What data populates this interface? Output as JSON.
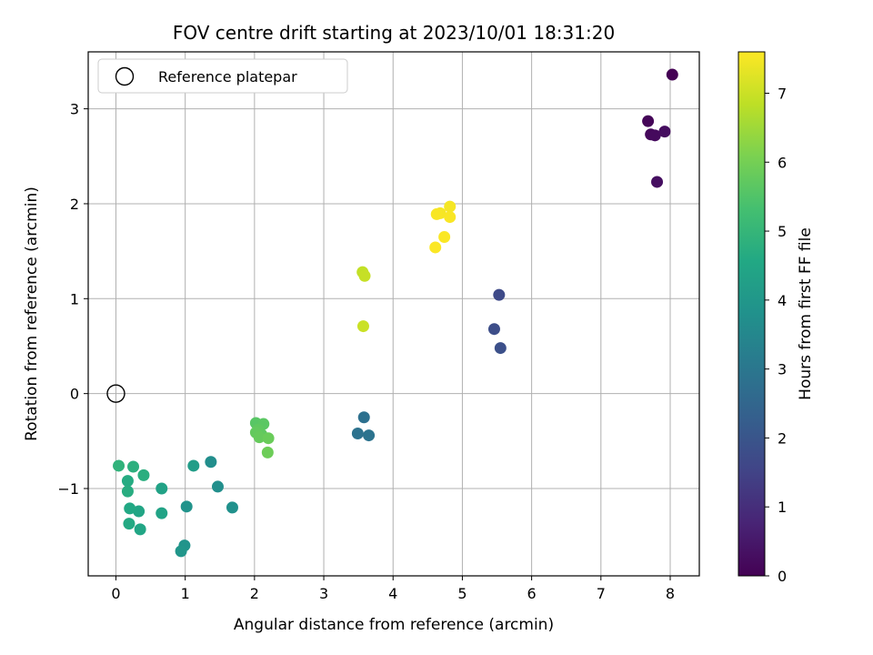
{
  "chart_data": {
    "type": "scatter",
    "title": "FOV centre drift starting at 2023/10/01 18:31:20",
    "xlabel": "Angular distance from reference (arcmin)",
    "ylabel": "Rotation from reference (arcmin)",
    "xlim": [
      -0.4,
      8.42
    ],
    "ylim": [
      -1.92,
      3.6
    ],
    "xticks": [
      0,
      1,
      2,
      3,
      4,
      5,
      6,
      7,
      8
    ],
    "yticks": [
      -1,
      0,
      1,
      2,
      3
    ],
    "ytick_labels": [
      "−1",
      "0",
      "1",
      "2",
      "3"
    ],
    "grid": true,
    "legend": {
      "location": "upper-left",
      "entries": [
        {
          "label": "Reference platepar",
          "marker": "open-circle",
          "x": 0,
          "y": 0
        }
      ]
    },
    "colorbar": {
      "label": "Hours from first FF file",
      "colormap": "viridis",
      "range": [
        0,
        7.6
      ],
      "ticks": [
        0,
        1,
        2,
        3,
        4,
        5,
        6,
        7
      ]
    },
    "points": [
      {
        "x": 8.03,
        "y": 3.36,
        "c": 0.0
      },
      {
        "x": 7.68,
        "y": 2.87,
        "c": 0.1
      },
      {
        "x": 7.72,
        "y": 2.73,
        "c": 0.15
      },
      {
        "x": 7.78,
        "y": 2.72,
        "c": 0.2
      },
      {
        "x": 7.92,
        "y": 2.76,
        "c": 0.25
      },
      {
        "x": 7.81,
        "y": 2.23,
        "c": 0.3
      },
      {
        "x": 5.53,
        "y": 1.04,
        "c": 1.7
      },
      {
        "x": 5.46,
        "y": 0.68,
        "c": 1.8
      },
      {
        "x": 5.55,
        "y": 0.48,
        "c": 1.85
      },
      {
        "x": 3.58,
        "y": -0.25,
        "c": 2.8
      },
      {
        "x": 3.49,
        "y": -0.42,
        "c": 2.85
      },
      {
        "x": 3.65,
        "y": -0.44,
        "c": 2.9
      },
      {
        "x": 1.37,
        "y": -0.72,
        "c": 3.7
      },
      {
        "x": 1.47,
        "y": -0.98,
        "c": 3.75
      },
      {
        "x": 1.68,
        "y": -1.2,
        "c": 3.8
      },
      {
        "x": 1.02,
        "y": -1.19,
        "c": 3.85
      },
      {
        "x": 0.99,
        "y": -1.6,
        "c": 3.9
      },
      {
        "x": 0.94,
        "y": -1.66,
        "c": 3.95
      },
      {
        "x": 1.12,
        "y": -0.76,
        "c": 4.2
      },
      {
        "x": 0.66,
        "y": -1.0,
        "c": 4.35
      },
      {
        "x": 0.66,
        "y": -1.26,
        "c": 4.4
      },
      {
        "x": 0.33,
        "y": -1.24,
        "c": 4.45
      },
      {
        "x": 0.35,
        "y": -1.43,
        "c": 4.5
      },
      {
        "x": 0.2,
        "y": -1.21,
        "c": 4.55
      },
      {
        "x": 0.19,
        "y": -1.37,
        "c": 4.6
      },
      {
        "x": 0.17,
        "y": -0.92,
        "c": 4.65
      },
      {
        "x": 0.17,
        "y": -1.03,
        "c": 4.7
      },
      {
        "x": 0.4,
        "y": -0.86,
        "c": 4.75
      },
      {
        "x": 0.25,
        "y": -0.77,
        "c": 4.8
      },
      {
        "x": 0.04,
        "y": -0.76,
        "c": 4.9
      },
      {
        "x": 2.02,
        "y": -0.31,
        "c": 5.6
      },
      {
        "x": 2.13,
        "y": -0.32,
        "c": 5.65
      },
      {
        "x": 2.05,
        "y": -0.38,
        "c": 5.7
      },
      {
        "x": 2.1,
        "y": -0.43,
        "c": 5.72
      },
      {
        "x": 2.02,
        "y": -0.41,
        "c": 5.75
      },
      {
        "x": 2.07,
        "y": -0.46,
        "c": 5.8
      },
      {
        "x": 2.2,
        "y": -0.47,
        "c": 5.85
      },
      {
        "x": 2.19,
        "y": -0.62,
        "c": 5.9
      },
      {
        "x": 3.56,
        "y": 1.28,
        "c": 6.9
      },
      {
        "x": 3.59,
        "y": 1.24,
        "c": 6.95
      },
      {
        "x": 3.57,
        "y": 0.71,
        "c": 7.0
      },
      {
        "x": 4.82,
        "y": 1.97,
        "c": 7.5
      },
      {
        "x": 4.68,
        "y": 1.9,
        "c": 7.52
      },
      {
        "x": 4.63,
        "y": 1.89,
        "c": 7.54
      },
      {
        "x": 4.82,
        "y": 1.86,
        "c": 7.55
      },
      {
        "x": 4.74,
        "y": 1.65,
        "c": 7.57
      },
      {
        "x": 4.61,
        "y": 1.54,
        "c": 7.58
      }
    ]
  }
}
